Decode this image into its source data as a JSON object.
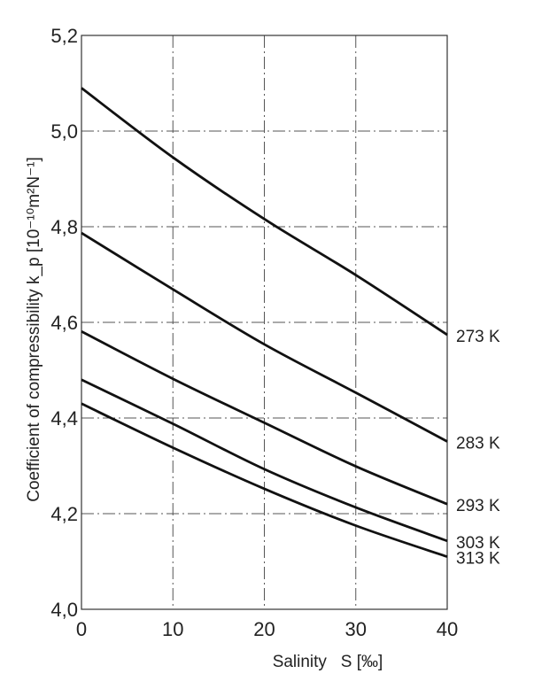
{
  "chart_data": {
    "type": "line",
    "title": "",
    "xlabel": "Salinity   S [‰]",
    "ylabel": "Coefficient of compressibility  k_p [10⁻¹⁰m²N⁻¹]",
    "xlim": [
      0,
      40
    ],
    "ylim": [
      4.0,
      5.2
    ],
    "xticks": [
      "0",
      "10",
      "20",
      "30",
      "40"
    ],
    "yticks": [
      "4.0",
      "4.2",
      "4.4",
      "4.6",
      "4.8",
      "5.0",
      "5.2"
    ],
    "grid": true,
    "grid_style": "dash-dot",
    "line_color": "#111111",
    "x": [
      0,
      10,
      20,
      30,
      40
    ],
    "series": [
      {
        "name": "273 K",
        "values": [
          5.09,
          4.945,
          4.816,
          4.699,
          4.574
        ]
      },
      {
        "name": "283 K",
        "values": [
          4.787,
          4.669,
          4.554,
          4.453,
          4.351
        ]
      },
      {
        "name": "293 K",
        "values": [
          4.581,
          4.482,
          4.39,
          4.299,
          4.22
        ]
      },
      {
        "name": "303 K",
        "values": [
          4.48,
          4.388,
          4.293,
          4.213,
          4.143
        ]
      },
      {
        "name": "313 K",
        "values": [
          4.43,
          4.338,
          4.252,
          4.175,
          4.11
        ]
      }
    ]
  }
}
